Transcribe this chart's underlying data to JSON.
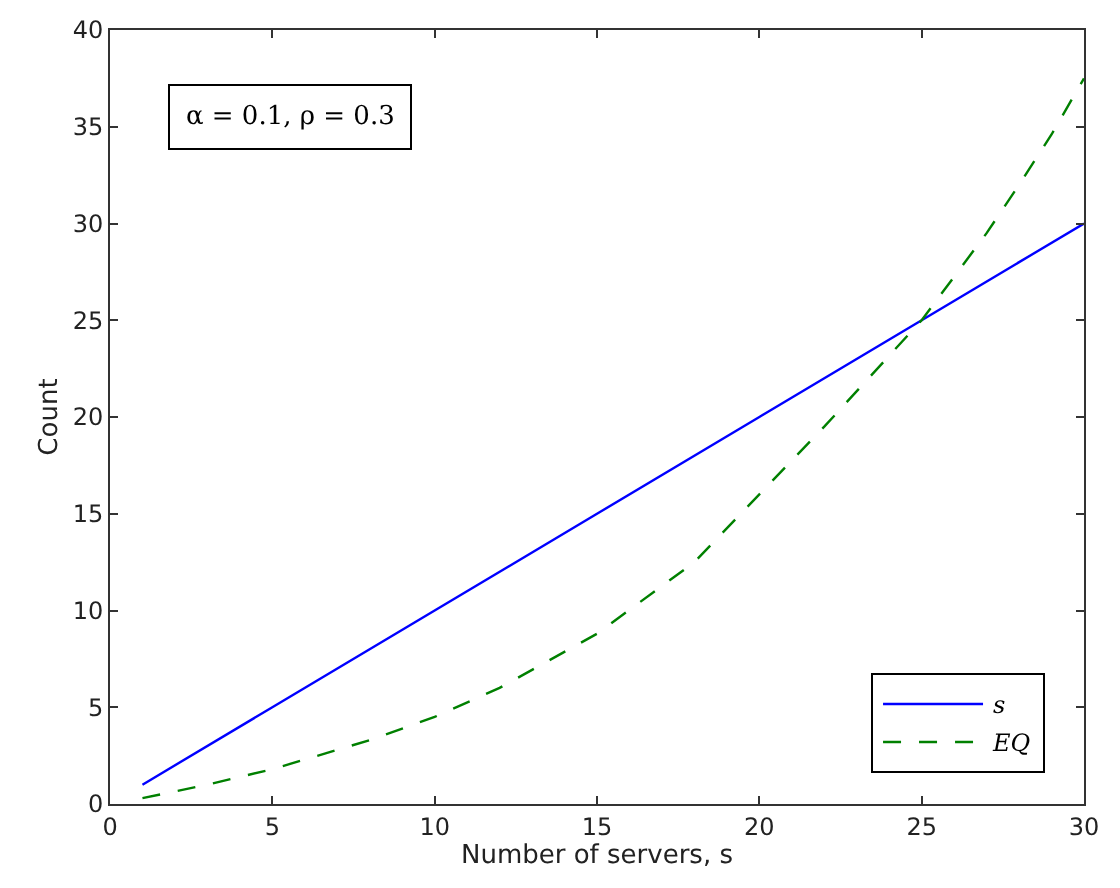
{
  "chart_data": {
    "type": "line",
    "xlabel": "Number of servers, s",
    "ylabel": "Count",
    "annotations": [
      "α = 0.1, ρ = 0.3"
    ],
    "xlim": [
      0,
      30
    ],
    "xticks": [
      0,
      5,
      10,
      15,
      20,
      25,
      30
    ],
    "ylim": [
      0,
      40
    ],
    "yticks": [
      0,
      5,
      10,
      15,
      20,
      25,
      30,
      35,
      40
    ],
    "legend": "bottom right",
    "marker": "none",
    "series": [
      {
        "name": "s",
        "color": "#0000ff",
        "line_style": "solid",
        "x": [
          1,
          5,
          10,
          15,
          20,
          25,
          30
        ],
        "values": [
          1,
          5,
          10,
          15,
          20,
          25,
          30
        ]
      },
      {
        "name": "EQ",
        "color": "#008000",
        "line_style": "dashed",
        "x": [
          1,
          3,
          5,
          8,
          10,
          12,
          15,
          18,
          20,
          22,
          25,
          27,
          28,
          29,
          30
        ],
        "values": [
          0.3,
          1.0,
          1.8,
          3.3,
          4.5,
          6.0,
          8.8,
          12.5,
          16.0,
          19.5,
          25.0,
          29.5,
          32.0,
          34.6,
          37.5
        ]
      }
    ]
  }
}
